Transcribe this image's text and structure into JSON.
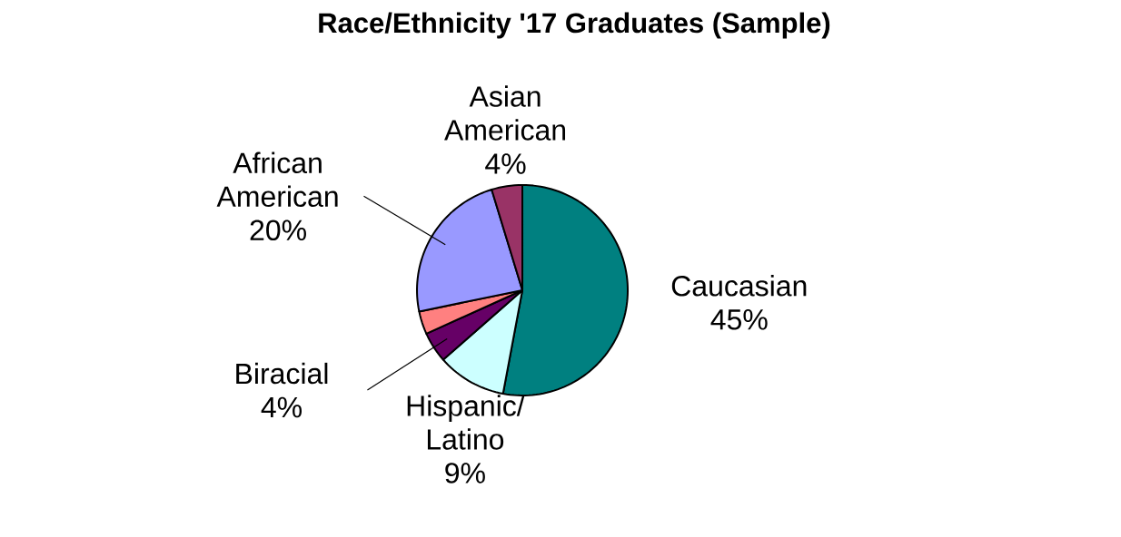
{
  "chart_data": {
    "type": "pie",
    "title": "Race/Ethnicity '17 Graduates (Sample)",
    "categories": [
      "Caucasian",
      "Hispanic/ Latino",
      "Biracial",
      null,
      "African American",
      "Asian American"
    ],
    "values": [
      45,
      9,
      4,
      3,
      20,
      4
    ],
    "value_labels": [
      "45%",
      "9%",
      "4%",
      null,
      "20%",
      "4%"
    ],
    "colors": [
      "#008080",
      "#ccffff",
      "#660066",
      "#ff8080",
      "#9999ff",
      "#993366"
    ]
  }
}
